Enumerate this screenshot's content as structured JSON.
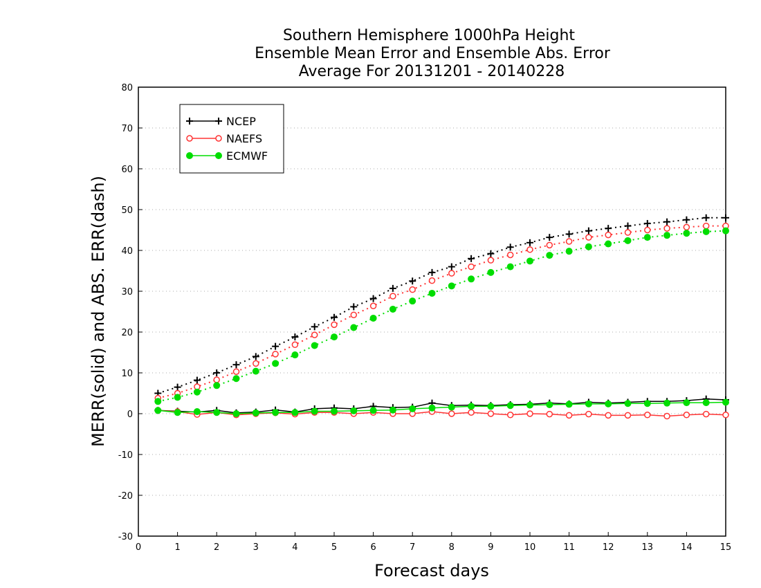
{
  "chart_data": {
    "type": "line",
    "title": [
      "Southern Hemisphere 1000hPa Height",
      "Ensemble Mean Error and Ensemble Abs. Error",
      "Average For 20131201 - 20140228"
    ],
    "xlabel": "Forecast days",
    "ylabel": "MERR(solid) and ABS. ERR(dash)",
    "xlim": [
      0,
      15
    ],
    "ylim": [
      -30,
      80
    ],
    "xticks": [
      "0",
      "1",
      "2",
      "3",
      "4",
      "5",
      "6",
      "7",
      "8",
      "9",
      "10",
      "11",
      "12",
      "13",
      "14",
      "15"
    ],
    "yticks": [
      "-30",
      "-20",
      "-10",
      "0",
      "10",
      "20",
      "30",
      "40",
      "50",
      "60",
      "70",
      "80"
    ],
    "grid": "dotted horizontal",
    "legend_position": "top-left",
    "x": [
      0.5,
      1,
      1.5,
      2,
      2.5,
      3,
      3.5,
      4,
      4.5,
      5,
      5.5,
      6,
      6.5,
      7,
      7.5,
      8,
      8.5,
      9,
      9.5,
      10,
      10.5,
      11,
      11.5,
      12,
      12.5,
      13,
      13.5,
      14,
      14.5,
      15
    ],
    "series": [
      {
        "name": "NCEP",
        "color": "#000000",
        "marker": "plus",
        "merr": [
          0.8,
          0.6,
          0.4,
          0.8,
          0.2,
          0.4,
          0.9,
          0.4,
          1.2,
          1.4,
          1.2,
          1.8,
          1.5,
          1.6,
          2.6,
          2.0,
          2.1,
          2.0,
          2.2,
          2.3,
          2.6,
          2.4,
          2.8,
          2.6,
          2.8,
          3.0,
          3.0,
          3.2,
          3.6,
          3.4
        ],
        "abs_err": [
          5.0,
          6.5,
          8.2,
          10.0,
          12.0,
          14.0,
          16.5,
          18.8,
          21.3,
          23.6,
          26.2,
          28.2,
          30.7,
          32.5,
          34.6,
          36.0,
          38.0,
          39.2,
          40.8,
          41.9,
          43.2,
          44.0,
          44.8,
          45.4,
          46.0,
          46.6,
          47.0,
          47.5,
          48.0,
          48.0
        ]
      },
      {
        "name": "NAEFS",
        "color": "#ff3333",
        "marker": "open-circle",
        "merr": [
          0.8,
          0.5,
          -0.2,
          0.3,
          -0.3,
          0.0,
          0.2,
          -0.1,
          0.3,
          0.3,
          0.0,
          0.3,
          0.0,
          0.0,
          0.5,
          0.0,
          0.3,
          0.0,
          -0.3,
          0.0,
          -0.1,
          -0.4,
          -0.1,
          -0.4,
          -0.4,
          -0.3,
          -0.6,
          -0.3,
          -0.1,
          -0.3
        ],
        "abs_err": [
          3.8,
          5.0,
          6.6,
          8.3,
          10.3,
          12.3,
          14.6,
          16.9,
          19.3,
          21.8,
          24.2,
          26.4,
          28.8,
          30.4,
          32.6,
          34.4,
          36.0,
          37.6,
          38.9,
          40.2,
          41.3,
          42.2,
          43.2,
          43.8,
          44.4,
          45.0,
          45.4,
          45.7,
          46.0,
          46.0
        ]
      },
      {
        "name": "ECMWF",
        "color": "#00dd00",
        "marker": "filled-circle",
        "merr": [
          0.8,
          0.3,
          0.5,
          0.3,
          0.0,
          0.2,
          0.3,
          0.3,
          0.6,
          0.6,
          0.7,
          0.8,
          0.9,
          1.2,
          1.4,
          1.6,
          1.8,
          1.8,
          2.0,
          2.1,
          2.2,
          2.3,
          2.4,
          2.4,
          2.5,
          2.5,
          2.6,
          2.7,
          2.7,
          2.8
        ],
        "abs_err": [
          3.0,
          4.0,
          5.3,
          6.9,
          8.6,
          10.4,
          12.3,
          14.4,
          16.7,
          18.8,
          21.1,
          23.4,
          25.6,
          27.6,
          29.5,
          31.3,
          33.0,
          34.6,
          36.0,
          37.4,
          38.8,
          39.8,
          40.9,
          41.6,
          42.4,
          43.2,
          43.7,
          44.2,
          44.6,
          44.8
        ]
      }
    ]
  }
}
